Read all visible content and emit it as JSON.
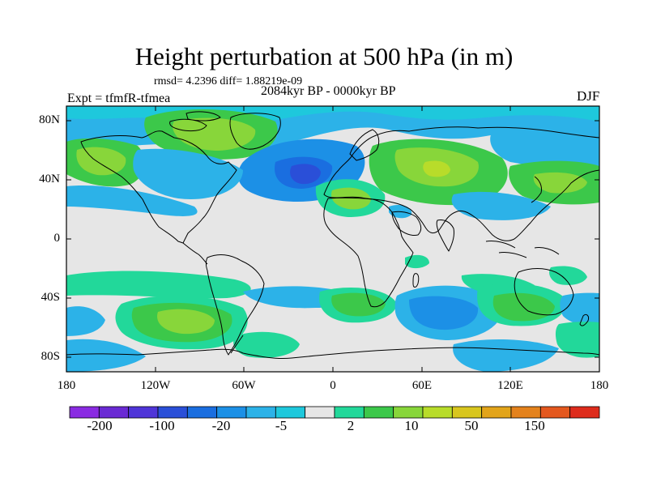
{
  "title": "Height perturbation at 500 hPa (in m)",
  "stats": "rmsd= 4.2396 diff= 1.88219e-09",
  "experiment": "Expt = tfmfR-tfmea",
  "period": "2084kyr BP - 0000kyr BP",
  "season": "DJF",
  "lat_labels": [
    "80N",
    "40N",
    "0",
    "40S",
    "80S"
  ],
  "lon_labels": [
    "180",
    "120W",
    "60W",
    "0",
    "60E",
    "120E",
    "180"
  ],
  "colorbar": {
    "labels": [
      "-200",
      "-100",
      "-20",
      "-5",
      "2",
      "10",
      "50",
      "150"
    ],
    "colors": [
      "#8a2be2",
      "#6a2ad4",
      "#4f35d8",
      "#2a4fd8",
      "#1a6ee0",
      "#1c90e6",
      "#2cb2e8",
      "#1ec8dc",
      "#e6e6e6",
      "#22d89a",
      "#3cc84a",
      "#88d63a",
      "#b8dc2a",
      "#d8c61e",
      "#e2a41a",
      "#e4821c",
      "#e4581e",
      "#de2c1c"
    ]
  },
  "map": {
    "background": "#e6e6e6",
    "land_outline": "#000000"
  }
}
